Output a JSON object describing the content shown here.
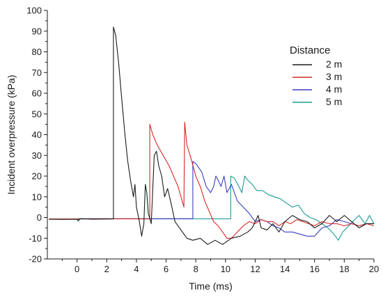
{
  "chart_data": {
    "type": "line",
    "xlabel": "Time (ms)",
    "ylabel": "Incident overpressure (kPa)",
    "xlim": [
      -2,
      20
    ],
    "ylim": [
      -20,
      100
    ],
    "xticks": [
      0,
      2,
      4,
      6,
      8,
      10,
      12,
      14,
      16,
      18,
      20
    ],
    "yticks": [
      -20,
      -10,
      0,
      10,
      20,
      30,
      40,
      50,
      60,
      70,
      80,
      90,
      100
    ],
    "legend": {
      "title": "Distance",
      "placement": "top-right"
    },
    "grid": false,
    "series": [
      {
        "name": "2 m",
        "color": "#1a1a1a",
        "points": [
          [
            -1.9,
            -0.8
          ],
          [
            -1.0,
            -0.9
          ],
          [
            0.0,
            -0.8
          ],
          [
            0.1,
            -1.5
          ],
          [
            0.2,
            -0.6
          ],
          [
            1.0,
            -0.8
          ],
          [
            2.45,
            -0.7
          ],
          [
            2.45,
            92
          ],
          [
            2.6,
            88
          ],
          [
            2.8,
            75
          ],
          [
            3.0,
            58
          ],
          [
            3.2,
            42
          ],
          [
            3.4,
            28
          ],
          [
            3.6,
            18
          ],
          [
            3.8,
            10
          ],
          [
            3.9,
            16
          ],
          [
            4.0,
            5
          ],
          [
            4.2,
            -2
          ],
          [
            4.35,
            -9
          ],
          [
            4.5,
            -3
          ],
          [
            4.6,
            16
          ],
          [
            4.7,
            12
          ],
          [
            4.8,
            2
          ],
          [
            5.0,
            -3
          ],
          [
            5.2,
            30
          ],
          [
            5.35,
            32
          ],
          [
            5.5,
            25
          ],
          [
            5.7,
            20
          ],
          [
            5.9,
            10
          ],
          [
            6.1,
            14
          ],
          [
            6.3,
            8
          ],
          [
            6.6,
            -2
          ],
          [
            7.0,
            -6
          ],
          [
            7.4,
            -10
          ],
          [
            7.8,
            -11
          ],
          [
            8.3,
            -10
          ],
          [
            8.8,
            -13
          ],
          [
            9.3,
            -11
          ],
          [
            9.8,
            -13
          ],
          [
            10.4,
            -10
          ],
          [
            11.0,
            -9
          ],
          [
            11.5,
            -7
          ],
          [
            11.8,
            -5
          ],
          [
            12.0,
            -2
          ],
          [
            12.2,
            1
          ],
          [
            12.4,
            -5
          ],
          [
            12.8,
            -6
          ],
          [
            13.2,
            -3
          ],
          [
            13.6,
            -7
          ],
          [
            14.0,
            -2
          ],
          [
            14.5,
            1
          ],
          [
            15.0,
            -1
          ],
          [
            15.5,
            -2
          ],
          [
            16.0,
            -5
          ],
          [
            16.5,
            -3
          ],
          [
            17.0,
            1
          ],
          [
            17.5,
            -2
          ],
          [
            18.0,
            1
          ],
          [
            18.5,
            -2
          ],
          [
            19.0,
            -5
          ],
          [
            19.5,
            -3
          ],
          [
            20.0,
            -3
          ]
        ]
      },
      {
        "name": "3 m",
        "color": "#d62828",
        "points": [
          [
            -1.9,
            -0.7
          ],
          [
            0.0,
            -0.7
          ],
          [
            2.0,
            -0.6
          ],
          [
            4.9,
            -0.7
          ],
          [
            4.9,
            45
          ],
          [
            5.1,
            40
          ],
          [
            5.4,
            35
          ],
          [
            5.8,
            30
          ],
          [
            6.2,
            25
          ],
          [
            6.5,
            20
          ],
          [
            6.8,
            15
          ],
          [
            7.0,
            10
          ],
          [
            7.2,
            5
          ],
          [
            7.25,
            46
          ],
          [
            7.4,
            35
          ],
          [
            7.7,
            28
          ],
          [
            8.0,
            20
          ],
          [
            8.3,
            15
          ],
          [
            8.6,
            8
          ],
          [
            8.9,
            3
          ],
          [
            9.2,
            -2
          ],
          [
            9.5,
            -4
          ],
          [
            9.8,
            -7
          ],
          [
            10.1,
            -10
          ],
          [
            10.4,
            -10
          ],
          [
            10.8,
            -7
          ],
          [
            11.2,
            -4
          ],
          [
            11.6,
            -2
          ],
          [
            12.0,
            -3
          ],
          [
            12.4,
            -1
          ],
          [
            12.8,
            -2
          ],
          [
            13.2,
            -2
          ],
          [
            13.6,
            -4
          ],
          [
            14.0,
            -2
          ],
          [
            14.4,
            -3
          ],
          [
            14.8,
            -1
          ],
          [
            15.2,
            -2
          ],
          [
            15.6,
            -3
          ],
          [
            16.0,
            -4
          ],
          [
            16.5,
            -2
          ],
          [
            17.0,
            -3
          ],
          [
            17.5,
            -3
          ],
          [
            18.0,
            -4
          ],
          [
            18.5,
            -3
          ],
          [
            19.0,
            -4
          ],
          [
            19.5,
            -3
          ],
          [
            20.0,
            -4
          ]
        ]
      },
      {
        "name": "4 m",
        "color": "#3b3bc4",
        "points": [
          [
            -1.9,
            -0.7
          ],
          [
            0.0,
            -0.7
          ],
          [
            2.0,
            -0.6
          ],
          [
            5.0,
            -0.6
          ],
          [
            7.8,
            -0.6
          ],
          [
            7.8,
            27
          ],
          [
            8.0,
            26
          ],
          [
            8.4,
            22
          ],
          [
            8.7,
            15
          ],
          [
            9.0,
            12
          ],
          [
            9.2,
            15
          ],
          [
            9.35,
            20
          ],
          [
            9.5,
            18
          ],
          [
            9.7,
            15
          ],
          [
            9.9,
            20
          ],
          [
            10.1,
            12
          ],
          [
            10.4,
            16
          ],
          [
            10.6,
            12
          ],
          [
            10.8,
            8
          ],
          [
            11.2,
            5
          ],
          [
            11.6,
            2
          ],
          [
            12.0,
            -2
          ],
          [
            12.4,
            -1
          ],
          [
            12.8,
            -2
          ],
          [
            13.2,
            -4
          ],
          [
            13.6,
            -5
          ],
          [
            14.0,
            -7
          ],
          [
            14.5,
            -7
          ],
          [
            15.0,
            -8
          ],
          [
            15.5,
            -9
          ],
          [
            16.0,
            -9
          ],
          [
            16.5,
            -5
          ],
          [
            17.0,
            -4
          ],
          [
            17.5,
            -1
          ],
          [
            18.0,
            -2
          ],
          [
            18.5,
            -3
          ],
          [
            19.0,
            -4
          ],
          [
            19.5,
            -3
          ],
          [
            20.0,
            -3
          ]
        ]
      },
      {
        "name": "5 m",
        "color": "#1a9a94",
        "points": [
          [
            -1.9,
            -0.7
          ],
          [
            0.0,
            -0.7
          ],
          [
            0.05,
            -1.6
          ],
          [
            0.1,
            -0.5
          ],
          [
            2.0,
            -0.6
          ],
          [
            5.0,
            -0.6
          ],
          [
            8.0,
            -0.6
          ],
          [
            10.35,
            -0.6
          ],
          [
            10.35,
            20
          ],
          [
            10.6,
            19
          ],
          [
            10.9,
            15
          ],
          [
            11.1,
            12
          ],
          [
            11.3,
            20
          ],
          [
            11.5,
            18
          ],
          [
            11.8,
            16
          ],
          [
            12.1,
            13
          ],
          [
            12.5,
            13
          ],
          [
            12.9,
            11
          ],
          [
            13.3,
            10
          ],
          [
            13.7,
            9
          ],
          [
            14.1,
            7
          ],
          [
            14.5,
            5
          ],
          [
            14.9,
            6
          ],
          [
            15.3,
            2
          ],
          [
            15.7,
            0
          ],
          [
            16.1,
            -1
          ],
          [
            16.5,
            -3
          ],
          [
            16.9,
            -5
          ],
          [
            17.3,
            -8
          ],
          [
            17.6,
            -11
          ],
          [
            17.9,
            -7
          ],
          [
            18.3,
            -4
          ],
          [
            18.7,
            -1
          ],
          [
            19.0,
            1
          ],
          [
            19.4,
            -3
          ],
          [
            19.7,
            1
          ],
          [
            20.0,
            -3
          ]
        ]
      }
    ]
  }
}
